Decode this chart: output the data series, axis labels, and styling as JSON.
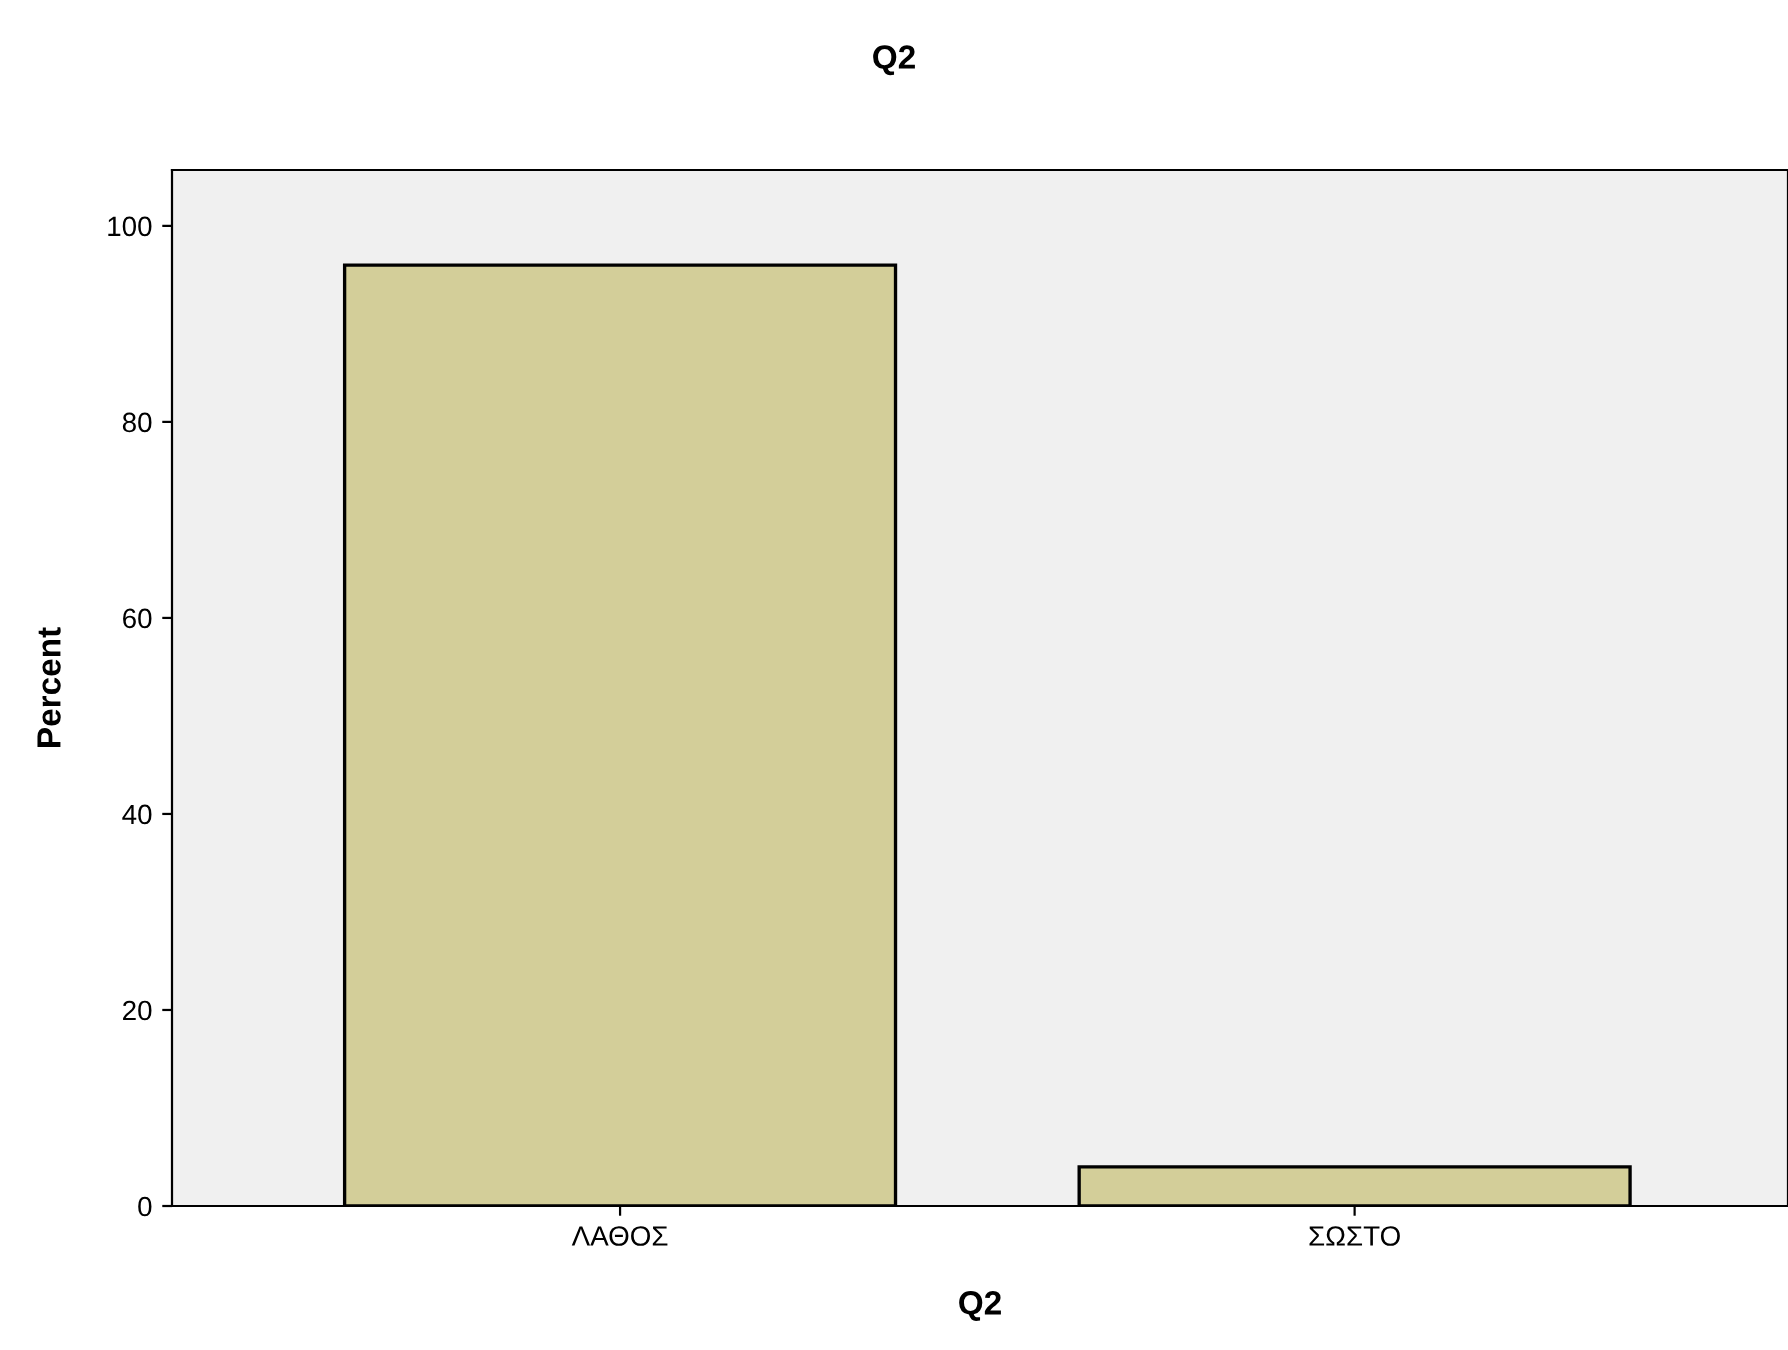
{
  "chart_data": {
    "type": "bar",
    "title": "Q2",
    "xlabel": "Q2",
    "ylabel": "Percent",
    "categories": [
      "ΛΑΘΟΣ",
      "ΣΩΣΤΟ"
    ],
    "values": [
      96,
      4
    ],
    "color": "#d3ce99",
    "ylim": [
      0,
      105.7
    ],
    "yticks": [
      0,
      20,
      40,
      60,
      80,
      100
    ],
    "grid": false
  }
}
